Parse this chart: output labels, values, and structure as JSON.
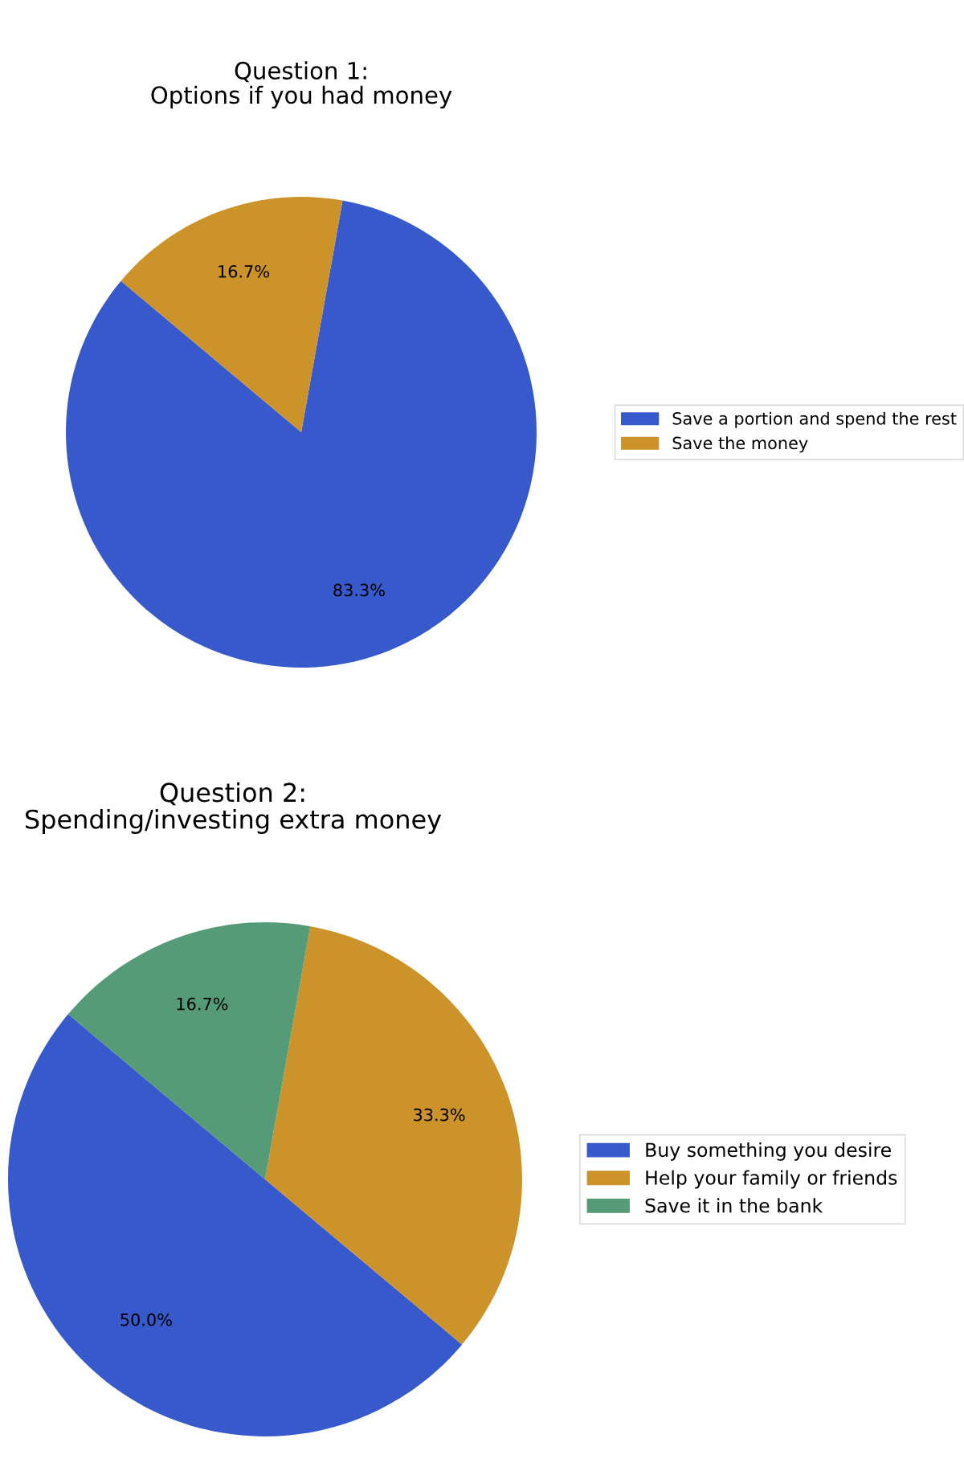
{
  "chart_data": [
    {
      "type": "pie",
      "title": "Question 1:\nOptions if you had money",
      "categories": [
        "Save a portion and spend the rest",
        "Save the money"
      ],
      "values": [
        83.3,
        16.7
      ],
      "colors": [
        "#3759cc",
        "#cc932b"
      ],
      "value_labels": [
        "83.3%",
        "16.7%"
      ],
      "legend": "right"
    },
    {
      "type": "pie",
      "title": "Question 2:\nSpending/investing extra money",
      "categories": [
        "Buy something you desire",
        "Help your family or friends",
        "Save it in the bank"
      ],
      "values": [
        50.0,
        33.3,
        16.7
      ],
      "colors": [
        "#3759cc",
        "#cc932b",
        "#569b77"
      ],
      "value_labels": [
        "50.0%",
        "33.3%",
        "16.7%"
      ],
      "legend": "right"
    }
  ]
}
